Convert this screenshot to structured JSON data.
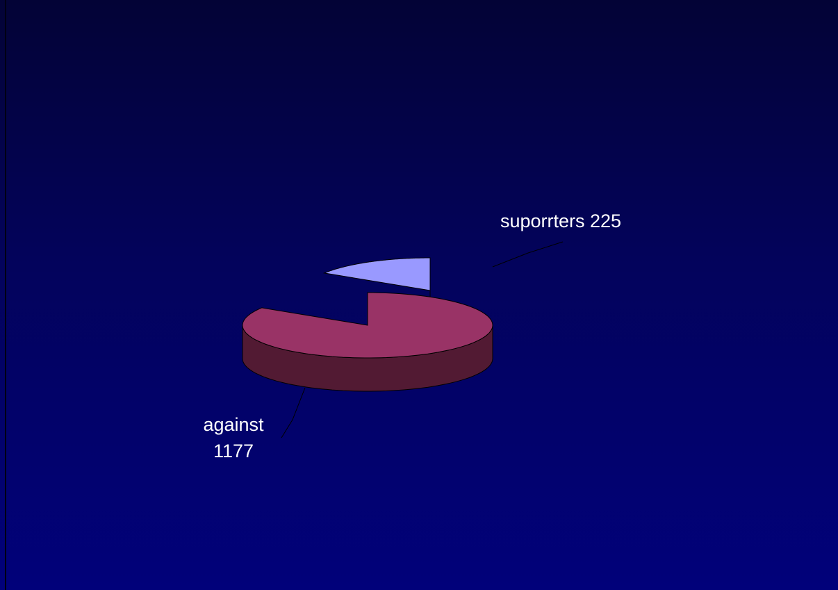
{
  "chart_data": {
    "type": "pie",
    "style": "3d-exploded",
    "slices": [
      {
        "label": "against",
        "value": 1177,
        "label_lines": [
          "against",
          "1177"
        ],
        "color": "#993366",
        "side_color": "#521a33"
      },
      {
        "label": "suporrters",
        "value": 225,
        "label_lines": [
          "suporrters 225"
        ],
        "color": "#9999ff",
        "side_color": "#4f4f7c"
      }
    ],
    "title": "",
    "legend": "none",
    "background": {
      "top": "#030336",
      "bottom": "#01017a"
    }
  }
}
